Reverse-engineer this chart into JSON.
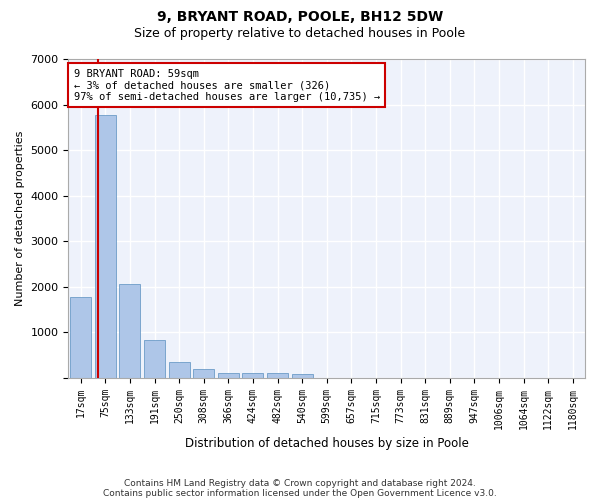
{
  "title1": "9, BRYANT ROAD, POOLE, BH12 5DW",
  "title2": "Size of property relative to detached houses in Poole",
  "xlabel": "Distribution of detached houses by size in Poole",
  "ylabel": "Number of detached properties",
  "categories": [
    "17sqm",
    "75sqm",
    "133sqm",
    "191sqm",
    "250sqm",
    "308sqm",
    "366sqm",
    "424sqm",
    "482sqm",
    "540sqm",
    "599sqm",
    "657sqm",
    "715sqm",
    "773sqm",
    "831sqm",
    "889sqm",
    "947sqm",
    "1006sqm",
    "1064sqm",
    "1122sqm",
    "1180sqm"
  ],
  "values": [
    1780,
    5780,
    2060,
    820,
    340,
    190,
    115,
    100,
    95,
    80,
    0,
    0,
    0,
    0,
    0,
    0,
    0,
    0,
    0,
    0,
    0
  ],
  "bar_color": "#aec6e8",
  "bar_edge_color": "#5a8fc0",
  "vline_color": "#cc0000",
  "annotation_text": "9 BRYANT ROAD: 59sqm\n← 3% of detached houses are smaller (326)\n97% of semi-detached houses are larger (10,735) →",
  "annotation_box_color": "#ffffff",
  "annotation_box_edge": "#cc0000",
  "ylim": [
    0,
    7000
  ],
  "background_color": "#eef2fb",
  "grid_color": "#ffffff",
  "footer1": "Contains HM Land Registry data © Crown copyright and database right 2024.",
  "footer2": "Contains public sector information licensed under the Open Government Licence v3.0."
}
